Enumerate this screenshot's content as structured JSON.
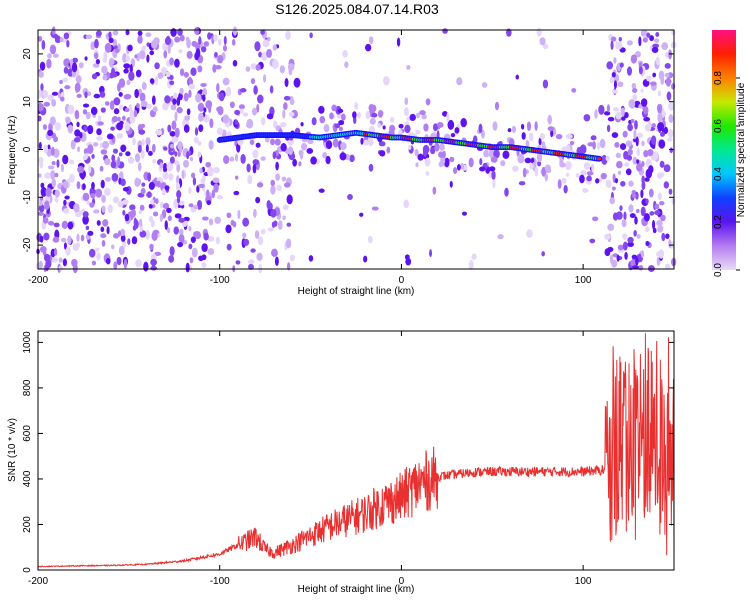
{
  "title": "S126.2025.084.07.14.R03",
  "colors": {
    "signal": "#e83030",
    "spec_low": "#6a1ff0",
    "spec_ridge": "#e0201f"
  },
  "chart_data": [
    {
      "type": "heatmap",
      "xlabel": "Height of straight line (km)",
      "ylabel": "Frequency (Hz)",
      "xlim": [
        -200,
        150
      ],
      "ylim": [
        -25,
        25
      ],
      "xticks": [
        -200,
        -100,
        0,
        100
      ],
      "yticks": [
        -20,
        -10,
        0,
        10,
        20
      ],
      "colorbar": {
        "label": "Normalized spectral amplitude",
        "range": [
          0,
          1
        ],
        "ticks": [
          "0.0",
          "0.2",
          "0.4",
          "0.6",
          "0.8"
        ]
      },
      "ridge": {
        "x": [
          -100,
          -80,
          -60,
          -45,
          -35,
          -25,
          -15,
          -5,
          0,
          10,
          20,
          30,
          40,
          50,
          60,
          70,
          80,
          90,
          100,
          110
        ],
        "y": [
          2,
          3,
          3,
          2.5,
          3,
          3.5,
          3,
          2.5,
          2.5,
          2,
          2,
          1.5,
          1,
          0.5,
          0.5,
          0,
          -0.5,
          -1,
          -1.5,
          -2
        ]
      },
      "noisy_regions": [
        [
          -200,
          -100
        ],
        [
          113,
          150
        ]
      ],
      "grid": false
    },
    {
      "type": "line",
      "xlabel": "Height of straight line (km)",
      "ylabel": "SNR (10 * v/v)",
      "xlim": [
        -200,
        150
      ],
      "ylim": [
        0,
        1050
      ],
      "xticks": [
        -200,
        -100,
        0,
        100
      ],
      "yticks": [
        0,
        200,
        400,
        600,
        800,
        1000
      ],
      "series": [
        {
          "x": [
            -200,
            -180,
            -160,
            -140,
            -120,
            -100,
            -90,
            -80,
            -75,
            -70,
            -60,
            -50,
            -40,
            -30,
            -20,
            -10,
            0,
            10,
            20,
            30,
            40,
            50,
            60,
            80,
            100,
            112,
            114,
            120,
            130,
            140,
            150
          ],
          "y": [
            15,
            18,
            20,
            25,
            40,
            70,
            110,
            145,
            90,
            75,
            110,
            150,
            190,
            220,
            250,
            290,
            320,
            380,
            410,
            420,
            430,
            432,
            432,
            432,
            432,
            440,
            420,
            600,
            580,
            560,
            460
          ]
        }
      ],
      "grid": false
    }
  ]
}
